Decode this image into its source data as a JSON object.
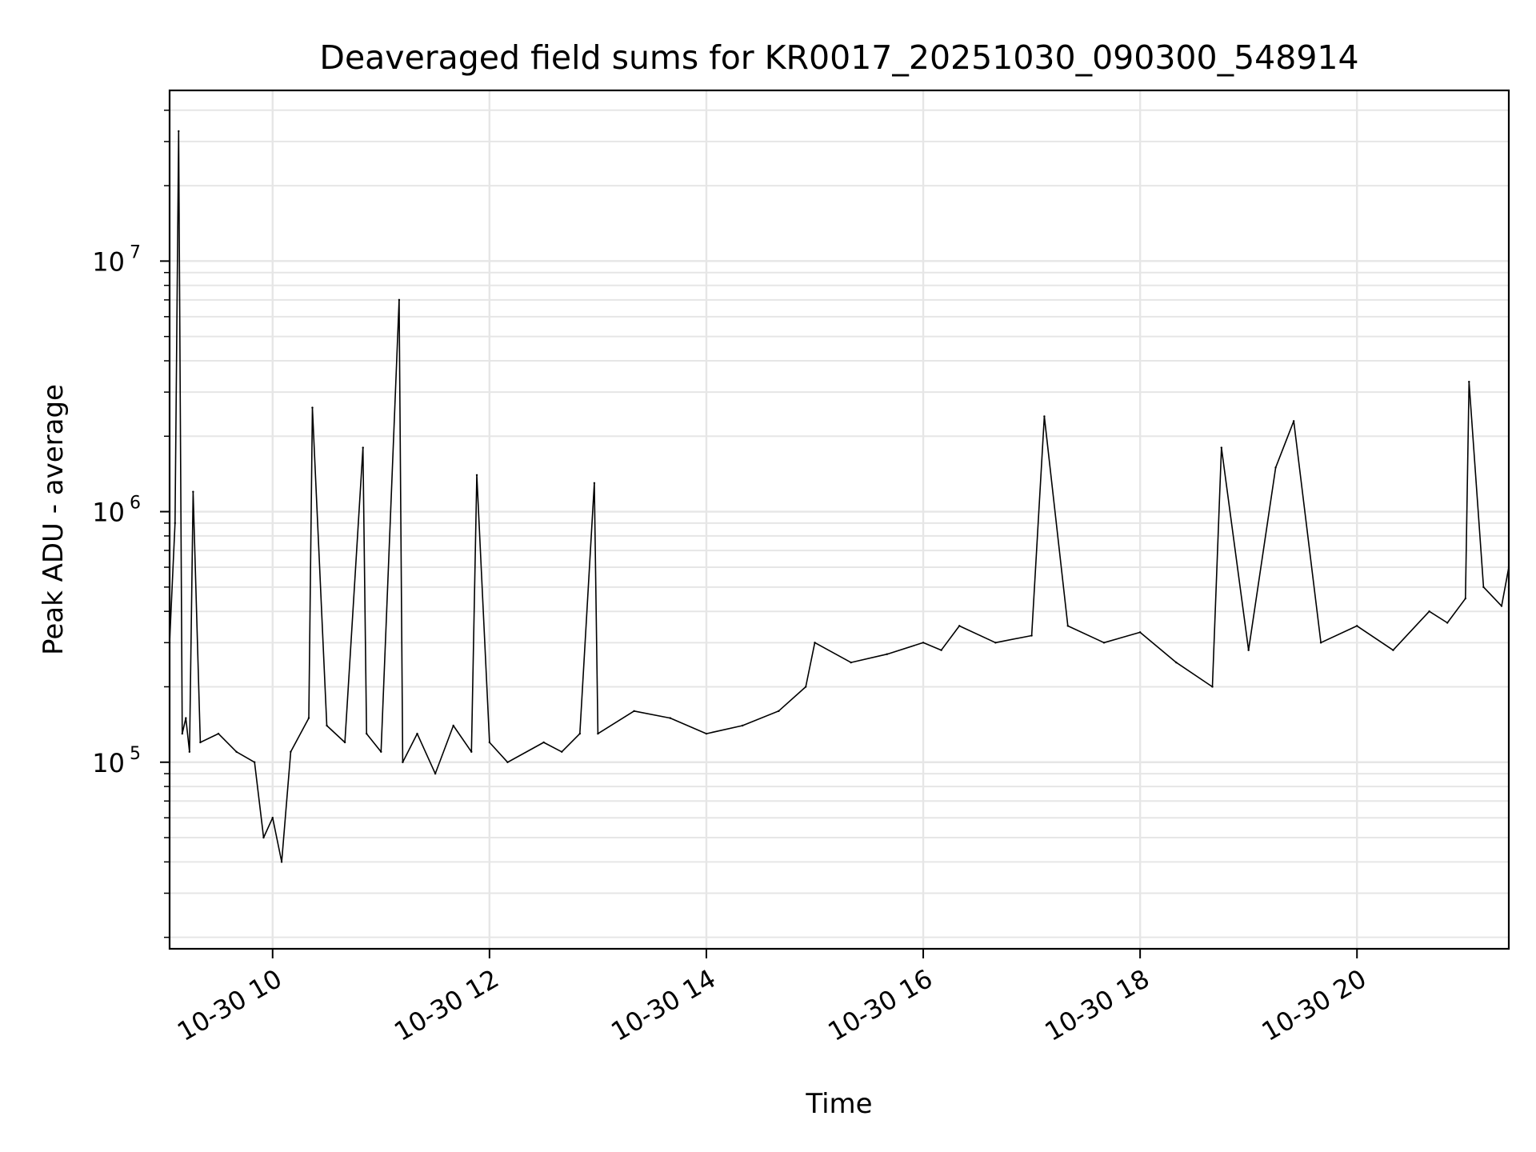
{
  "chart_data": {
    "type": "line",
    "title": "Deaveraged field sums for KR0017_20251030_090300_548914",
    "xlabel": "Time",
    "ylabel": "Peak ADU - average",
    "xscale": "time",
    "yscale": "log",
    "xlim": [
      "2025-10-30 09:03",
      "2025-10-30 21:24"
    ],
    "ylim": [
      18000,
      48000000
    ],
    "grid": true,
    "line_color": "#000000",
    "grid_color": "#e6e6e6",
    "x_ticks": [
      {
        "value": "2025-10-30 10:00",
        "label": "10-30 10"
      },
      {
        "value": "2025-10-30 12:00",
        "label": "10-30 12"
      },
      {
        "value": "2025-10-30 14:00",
        "label": "10-30 14"
      },
      {
        "value": "2025-10-30 16:00",
        "label": "10-30 16"
      },
      {
        "value": "2025-10-30 18:00",
        "label": "10-30 18"
      },
      {
        "value": "2025-10-30 20:00",
        "label": "10-30 20"
      }
    ],
    "y_ticks": [
      {
        "value": 100000,
        "base": "10",
        "exp": "5"
      },
      {
        "value": 1000000,
        "base": "10",
        "exp": "6"
      },
      {
        "value": 10000000,
        "base": "10",
        "exp": "7"
      }
    ],
    "series": [
      {
        "x": [
          "2025-10-30 09:03",
          "2025-10-30 09:06",
          "2025-10-30 09:08",
          "2025-10-30 09:10",
          "2025-10-30 09:12",
          "2025-10-30 09:14",
          "2025-10-30 09:16",
          "2025-10-30 09:20",
          "2025-10-30 09:30",
          "2025-10-30 09:40",
          "2025-10-30 09:50",
          "2025-10-30 09:55",
          "2025-10-30 10:00",
          "2025-10-30 10:05",
          "2025-10-30 10:10",
          "2025-10-30 10:20",
          "2025-10-30 10:22",
          "2025-10-30 10:30",
          "2025-10-30 10:40",
          "2025-10-30 10:50",
          "2025-10-30 10:52",
          "2025-10-30 11:00",
          "2025-10-30 11:10",
          "2025-10-30 11:12",
          "2025-10-30 11:20",
          "2025-10-30 11:30",
          "2025-10-30 11:40",
          "2025-10-30 11:50",
          "2025-10-30 11:53",
          "2025-10-30 12:00",
          "2025-10-30 12:10",
          "2025-10-30 12:30",
          "2025-10-30 12:40",
          "2025-10-30 12:50",
          "2025-10-30 12:58",
          "2025-10-30 13:00",
          "2025-10-30 13:20",
          "2025-10-30 13:40",
          "2025-10-30 14:00",
          "2025-10-30 14:20",
          "2025-10-30 14:40",
          "2025-10-30 14:55",
          "2025-10-30 15:00",
          "2025-10-30 15:20",
          "2025-10-30 15:40",
          "2025-10-30 16:00",
          "2025-10-30 16:10",
          "2025-10-30 16:20",
          "2025-10-30 16:40",
          "2025-10-30 17:00",
          "2025-10-30 17:07",
          "2025-10-30 17:20",
          "2025-10-30 17:40",
          "2025-10-30 18:00",
          "2025-10-30 18:20",
          "2025-10-30 18:40",
          "2025-10-30 18:45",
          "2025-10-30 19:00",
          "2025-10-30 19:15",
          "2025-10-30 19:25",
          "2025-10-30 19:40",
          "2025-10-30 20:00",
          "2025-10-30 20:20",
          "2025-10-30 20:40",
          "2025-10-30 20:50",
          "2025-10-30 21:00",
          "2025-10-30 21:02",
          "2025-10-30 21:10",
          "2025-10-30 21:20",
          "2025-10-30 21:24"
        ],
        "y": [
          300000,
          900000,
          33000000,
          130000,
          150000,
          110000,
          1200000,
          120000,
          130000,
          110000,
          100000,
          50000,
          60000,
          40000,
          110000,
          150000,
          2600000,
          140000,
          120000,
          1800000,
          130000,
          110000,
          7000000,
          100000,
          130000,
          90000,
          140000,
          110000,
          1400000,
          120000,
          100000,
          120000,
          110000,
          130000,
          1300000,
          130000,
          160000,
          150000,
          130000,
          140000,
          160000,
          200000,
          300000,
          250000,
          270000,
          300000,
          280000,
          350000,
          300000,
          320000,
          2400000,
          350000,
          300000,
          330000,
          250000,
          200000,
          1800000,
          280000,
          1500000,
          2300000,
          300000,
          350000,
          280000,
          400000,
          360000,
          450000,
          3300000,
          500000,
          420000,
          600000
        ]
      }
    ]
  }
}
